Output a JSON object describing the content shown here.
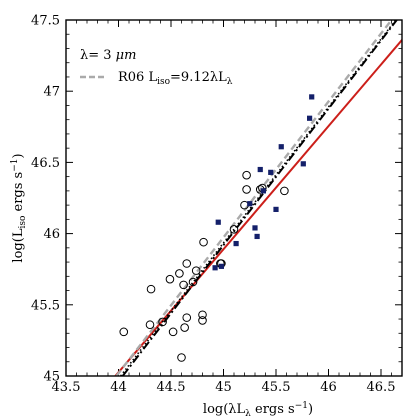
{
  "chart_data": {
    "type": "scatter",
    "xlabel": "log(λL",
    "xlabel_sub": "λ",
    "xlabel_tail": " ergs s",
    "xlabel_sup": "−1",
    "xlabel_close": ")",
    "ylabel": "log(L",
    "ylabel_sub": "iso",
    "ylabel_tail": " ergs s",
    "ylabel_sup": "−1",
    "ylabel_close": ")",
    "xlim": [
      43.5,
      46.7
    ],
    "ylim": [
      45.0,
      47.5
    ],
    "xticks": [
      43.5,
      44,
      44.5,
      45,
      45.5,
      46,
      46.5
    ],
    "xtick_labels": [
      "43.5",
      "44",
      "44.5",
      "45",
      "45.5",
      "46",
      "46.5"
    ],
    "yticks": [
      45,
      45.5,
      46,
      46.5,
      47,
      47.5
    ],
    "ytick_labels": [
      "45",
      "45.5",
      "46",
      "46.5",
      "47",
      "47.5"
    ],
    "legend": {
      "placement": "top-left",
      "title_text": "λ= 3 ",
      "title_unit": "μm",
      "entry_label": "R06 L",
      "entry_sub": "iso",
      "entry_tail": "=9.12λL",
      "entry_sub2": "λ",
      "entry_line_color": "#aaaaaa"
    },
    "series": [
      {
        "marker": "open-circle",
        "color": "#000000",
        "points": [
          [
            44.05,
            45.31
          ],
          [
            44.3,
            45.36
          ],
          [
            44.31,
            45.61
          ],
          [
            44.42,
            45.38
          ],
          [
            44.49,
            45.68
          ],
          [
            44.52,
            45.31
          ],
          [
            44.58,
            45.72
          ],
          [
            44.6,
            45.13
          ],
          [
            44.62,
            45.64
          ],
          [
            44.63,
            45.34
          ],
          [
            44.65,
            45.79
          ],
          [
            44.65,
            45.41
          ],
          [
            44.71,
            45.66
          ],
          [
            44.74,
            45.74
          ],
          [
            44.8,
            45.39
          ],
          [
            44.8,
            45.43
          ],
          [
            44.81,
            45.94
          ],
          [
            44.97,
            45.79
          ],
          [
            44.98,
            45.79
          ],
          [
            45.1,
            46.03
          ],
          [
            45.2,
            46.2
          ],
          [
            45.22,
            46.31
          ],
          [
            45.22,
            46.41
          ],
          [
            45.35,
            46.31
          ],
          [
            45.37,
            46.32
          ],
          [
            45.58,
            46.3
          ]
        ]
      },
      {
        "marker": "filled-square",
        "color": "#14206a",
        "points": [
          [
            44.92,
            45.76
          ],
          [
            44.95,
            46.08
          ],
          [
            44.98,
            45.77
          ],
          [
            45.12,
            45.93
          ],
          [
            45.25,
            46.21
          ],
          [
            45.3,
            46.04
          ],
          [
            45.32,
            45.98
          ],
          [
            45.35,
            46.45
          ],
          [
            45.38,
            46.3
          ],
          [
            45.45,
            46.43
          ],
          [
            45.5,
            46.17
          ],
          [
            45.55,
            46.61
          ],
          [
            45.76,
            46.49
          ],
          [
            45.82,
            46.81
          ],
          [
            45.84,
            46.96
          ]
        ]
      }
    ],
    "lines": [
      {
        "style": "solid",
        "color": "#cc1f1a",
        "width": 2,
        "x": [
          43.97,
          46.7
        ],
        "y": [
          45.0,
          47.36
        ]
      },
      {
        "style": "dashed",
        "color": "#aaaaaa",
        "width": 2.4,
        "x": [
          43.98,
          46.6
        ],
        "y": [
          45.0,
          47.5
        ]
      },
      {
        "style": "dashdot",
        "color": "#000000",
        "width": 2,
        "x": [
          44.04,
          46.65
        ],
        "y": [
          45.0,
          47.5
        ]
      },
      {
        "style": "dotted",
        "color": "#000000",
        "width": 1.6,
        "x": [
          44.02,
          46.64
        ],
        "y": [
          45.0,
          47.5
        ]
      }
    ]
  }
}
